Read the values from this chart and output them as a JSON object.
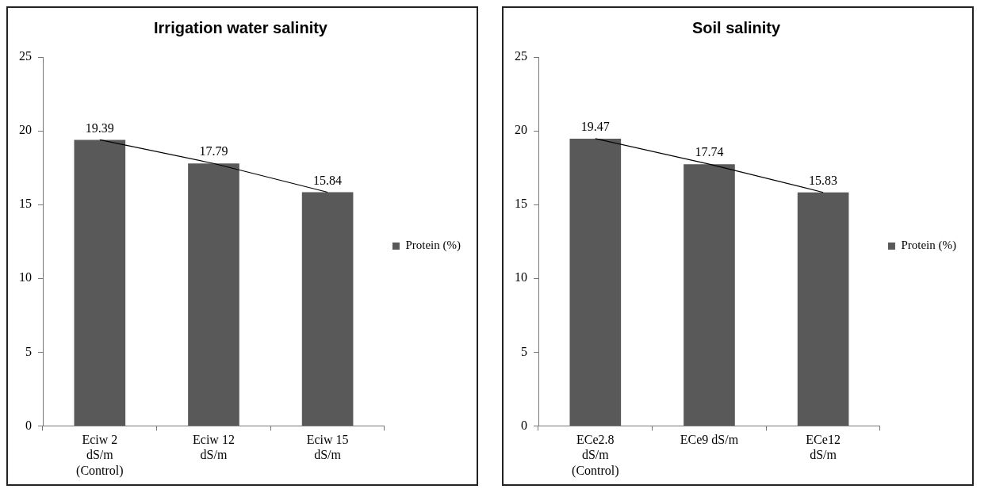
{
  "chart_data": [
    {
      "type": "bar",
      "title": "Irrigation water salinity",
      "categories": [
        "Eciw 2 dS/m (Control)",
        "Eciw 12 dS/m",
        "Eciw 15 dS/m"
      ],
      "series": [
        {
          "name": "Protein (%)",
          "color": "#595959",
          "values": [
            19.39,
            17.79,
            15.84
          ],
          "value_labels": [
            "19.39",
            "17.79",
            "15.84"
          ]
        },
        {
          "type": "line",
          "color": "#000000",
          "values": [
            19.39,
            17.79,
            15.84
          ]
        }
      ],
      "ylim": [
        0,
        25
      ],
      "yticks": [
        0,
        5,
        10,
        15,
        20,
        25
      ],
      "grid": false,
      "legend": "right",
      "marker": "none"
    },
    {
      "type": "bar",
      "title": "Soil salinity",
      "categories": [
        "ECe2.8 dS/m (Control)",
        "ECe9 dS/m",
        "ECe12 dS/m"
      ],
      "series": [
        {
          "name": "Protein (%)",
          "color": "#595959",
          "values": [
            19.47,
            17.74,
            15.83
          ],
          "value_labels": [
            "19.47",
            "17.74",
            "15.83"
          ]
        },
        {
          "type": "line",
          "color": "#000000",
          "values": [
            19.47,
            17.74,
            15.83
          ]
        }
      ],
      "ylim": [
        0,
        25
      ],
      "yticks": [
        0,
        5,
        10,
        15,
        20,
        25
      ],
      "grid": false,
      "legend": "right",
      "marker": "none"
    }
  ]
}
